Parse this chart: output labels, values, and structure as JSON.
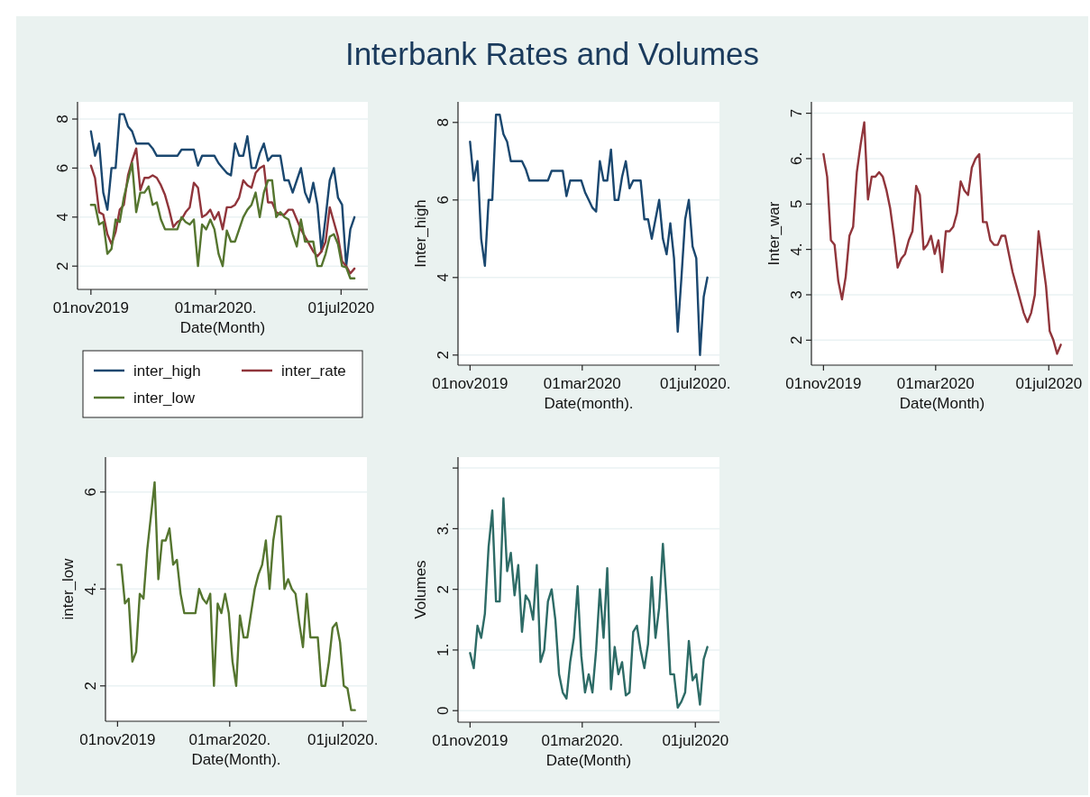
{
  "chart_data": [
    {
      "type": "other",
      "title": "Interbank Rates and Volumes"
    },
    {
      "type": "line",
      "xlabel": "Date(Month)",
      "legend": "bottom",
      "grid": "y",
      "x": [
        "2019-11-01",
        "2019-11-05",
        "2019-11-09",
        "2019-11-13",
        "2019-11-17",
        "2019-11-21",
        "2019-11-25",
        "2019-11-29",
        "2019-12-03",
        "2019-12-07",
        "2019-12-11",
        "2019-12-15",
        "2019-12-19",
        "2019-12-23",
        "2019-12-27",
        "2019-12-31",
        "2020-01-04",
        "2020-01-08",
        "2020-01-12",
        "2020-01-16",
        "2020-01-20",
        "2020-01-24",
        "2020-01-28",
        "2020-02-01",
        "2020-02-05",
        "2020-02-09",
        "2020-02-13",
        "2020-02-17",
        "2020-02-21",
        "2020-02-25",
        "2020-02-29",
        "2020-03-04",
        "2020-03-08",
        "2020-03-12",
        "2020-03-16",
        "2020-03-20",
        "2020-03-24",
        "2020-03-28",
        "2020-04-01",
        "2020-04-05",
        "2020-04-09",
        "2020-04-13",
        "2020-04-17",
        "2020-04-21",
        "2020-04-25",
        "2020-04-29",
        "2020-05-03",
        "2020-05-07",
        "2020-05-11",
        "2020-05-15",
        "2020-05-19",
        "2020-05-23",
        "2020-05-27",
        "2020-05-31",
        "2020-06-04",
        "2020-06-08",
        "2020-06-12",
        "2020-06-16",
        "2020-06-20",
        "2020-06-24",
        "2020-06-28",
        "2020-07-02",
        "2020-07-06",
        "2020-07-10",
        "2020-07-14"
      ],
      "xlim": [
        "2019-10-19",
        "2020-07-27"
      ],
      "xticks": [
        {
          "value": "2019-11-01",
          "label": "01nov2019"
        },
        {
          "value": "2020-03-01",
          "label": "01mar2020."
        },
        {
          "value": "2020-07-01",
          "label": "01jul2020"
        }
      ],
      "ylim": [
        1.05,
        8.7
      ],
      "yticks": [
        2,
        4,
        6,
        8
      ],
      "series": [
        {
          "name": "inter_high",
          "color": "#1a476f",
          "values": [
            7.5,
            6.5,
            7.0,
            5.0,
            4.3,
            6.0,
            6.0,
            8.2,
            8.2,
            7.7,
            7.5,
            7.0,
            7.0,
            7.0,
            7.0,
            6.8,
            6.5,
            6.5,
            6.5,
            6.5,
            6.5,
            6.5,
            6.75,
            6.75,
            6.75,
            6.75,
            6.1,
            6.5,
            6.5,
            6.5,
            6.5,
            6.2,
            6.0,
            5.8,
            5.7,
            7.0,
            6.5,
            6.5,
            7.3,
            6.0,
            6.0,
            6.6,
            7.0,
            6.3,
            6.5,
            6.5,
            6.5,
            5.5,
            5.5,
            5.0,
            5.5,
            6.0,
            5.0,
            4.6,
            5.4,
            4.5,
            2.6,
            4.0,
            5.5,
            6.0,
            4.8,
            4.5,
            2.0,
            3.5,
            4.0
          ]
        },
        {
          "name": "inter_rate",
          "color": "#90353b",
          "values": [
            6.1,
            5.6,
            4.2,
            4.1,
            3.3,
            2.9,
            3.4,
            4.3,
            4.5,
            5.7,
            6.3,
            6.8,
            5.1,
            5.6,
            5.6,
            5.7,
            5.6,
            5.3,
            4.9,
            4.3,
            3.6,
            3.8,
            3.9,
            4.2,
            4.4,
            5.4,
            5.2,
            4.0,
            4.1,
            4.3,
            3.9,
            4.2,
            3.5,
            4.4,
            4.4,
            4.5,
            4.8,
            5.5,
            5.3,
            5.2,
            5.8,
            6.0,
            6.1,
            4.6,
            4.6,
            4.2,
            4.1,
            4.1,
            4.3,
            4.3,
            3.9,
            3.5,
            3.2,
            2.9,
            2.6,
            2.4,
            2.6,
            3.0,
            4.4,
            3.8,
            3.2,
            2.2,
            2.0,
            1.7,
            1.9
          ]
        },
        {
          "name": "inter_low",
          "color": "#55752f",
          "values": [
            4.5,
            4.5,
            3.7,
            3.8,
            2.5,
            2.7,
            3.9,
            3.8,
            4.8,
            5.5,
            6.2,
            4.2,
            5.0,
            5.0,
            5.25,
            4.5,
            4.6,
            3.9,
            3.5,
            3.5,
            3.5,
            3.5,
            4.0,
            3.8,
            3.7,
            3.9,
            2.0,
            3.7,
            3.5,
            3.9,
            3.5,
            2.5,
            2.0,
            3.45,
            3.0,
            3.0,
            3.5,
            4.0,
            4.3,
            4.5,
            5.0,
            4.0,
            5.0,
            5.5,
            5.5,
            4.0,
            4.2,
            4.0,
            3.9,
            3.3,
            2.8,
            3.9,
            3.0,
            3.0,
            3.0,
            2.0,
            2.0,
            2.5,
            3.2,
            3.3,
            2.9,
            2.0,
            1.95,
            1.5,
            1.5
          ]
        }
      ]
    },
    {
      "type": "line",
      "xlabel": "Date(month).",
      "ylabel": "Inter_high",
      "grid": "y",
      "x": [
        "2019-11-01",
        "2019-11-05",
        "2019-11-09",
        "2019-11-13",
        "2019-11-17",
        "2019-11-21",
        "2019-11-25",
        "2019-11-29",
        "2019-12-03",
        "2019-12-07",
        "2019-12-11",
        "2019-12-15",
        "2019-12-19",
        "2019-12-23",
        "2019-12-27",
        "2019-12-31",
        "2020-01-04",
        "2020-01-08",
        "2020-01-12",
        "2020-01-16",
        "2020-01-20",
        "2020-01-24",
        "2020-01-28",
        "2020-02-01",
        "2020-02-05",
        "2020-02-09",
        "2020-02-13",
        "2020-02-17",
        "2020-02-21",
        "2020-02-25",
        "2020-02-29",
        "2020-03-04",
        "2020-03-08",
        "2020-03-12",
        "2020-03-16",
        "2020-03-20",
        "2020-03-24",
        "2020-03-28",
        "2020-04-01",
        "2020-04-05",
        "2020-04-09",
        "2020-04-13",
        "2020-04-17",
        "2020-04-21",
        "2020-04-25",
        "2020-04-29",
        "2020-05-03",
        "2020-05-07",
        "2020-05-11",
        "2020-05-15",
        "2020-05-19",
        "2020-05-23",
        "2020-05-27",
        "2020-05-31",
        "2020-06-04",
        "2020-06-08",
        "2020-06-12",
        "2020-06-16",
        "2020-06-20",
        "2020-06-24",
        "2020-06-28",
        "2020-07-02",
        "2020-07-06",
        "2020-07-10",
        "2020-07-14"
      ],
      "xlim": [
        "2019-10-19",
        "2020-07-27"
      ],
      "xticks": [
        {
          "value": "2019-11-01",
          "label": "01nov2019"
        },
        {
          "value": "2020-03-01",
          "label": "01mar2020"
        },
        {
          "value": "2020-07-01",
          "label": "01jul2020."
        }
      ],
      "ylim": [
        1.74,
        8.53
      ],
      "yticks": [
        2,
        4,
        6,
        8
      ],
      "series": [
        {
          "color": "#1a476f",
          "values": [
            7.5,
            6.5,
            7.0,
            5.0,
            4.3,
            6.0,
            6.0,
            8.2,
            8.2,
            7.7,
            7.5,
            7.0,
            7.0,
            7.0,
            7.0,
            6.8,
            6.5,
            6.5,
            6.5,
            6.5,
            6.5,
            6.5,
            6.75,
            6.75,
            6.75,
            6.75,
            6.1,
            6.5,
            6.5,
            6.5,
            6.5,
            6.2,
            6.0,
            5.8,
            5.7,
            7.0,
            6.5,
            6.5,
            7.3,
            6.0,
            6.0,
            6.6,
            7.0,
            6.3,
            6.5,
            6.5,
            6.5,
            5.5,
            5.5,
            5.0,
            5.5,
            6.0,
            5.0,
            4.6,
            5.4,
            4.5,
            2.6,
            4.0,
            5.5,
            6.0,
            4.8,
            4.5,
            2.0,
            3.5,
            4.0
          ]
        }
      ]
    },
    {
      "type": "line",
      "xlabel": "Date(Month)",
      "ylabel": "Inter_war",
      "grid": "y",
      "x": [
        "2019-11-01",
        "2019-11-05",
        "2019-11-09",
        "2019-11-13",
        "2019-11-17",
        "2019-11-21",
        "2019-11-25",
        "2019-11-29",
        "2019-12-03",
        "2019-12-07",
        "2019-12-11",
        "2019-12-15",
        "2019-12-19",
        "2019-12-23",
        "2019-12-27",
        "2019-12-31",
        "2020-01-04",
        "2020-01-08",
        "2020-01-12",
        "2020-01-16",
        "2020-01-20",
        "2020-01-24",
        "2020-01-28",
        "2020-02-01",
        "2020-02-05",
        "2020-02-09",
        "2020-02-13",
        "2020-02-17",
        "2020-02-21",
        "2020-02-25",
        "2020-02-29",
        "2020-03-04",
        "2020-03-08",
        "2020-03-12",
        "2020-03-16",
        "2020-03-20",
        "2020-03-24",
        "2020-03-28",
        "2020-04-01",
        "2020-04-05",
        "2020-04-09",
        "2020-04-13",
        "2020-04-17",
        "2020-04-21",
        "2020-04-25",
        "2020-04-29",
        "2020-05-03",
        "2020-05-07",
        "2020-05-11",
        "2020-05-15",
        "2020-05-19",
        "2020-05-23",
        "2020-05-27",
        "2020-05-31",
        "2020-06-04",
        "2020-06-08",
        "2020-06-12",
        "2020-06-16",
        "2020-06-20",
        "2020-06-24",
        "2020-06-28",
        "2020-07-02",
        "2020-07-06",
        "2020-07-10",
        "2020-07-14"
      ],
      "xlim": [
        "2019-10-19",
        "2020-07-27"
      ],
      "xticks": [
        {
          "value": "2019-11-01",
          "label": "01nov2019"
        },
        {
          "value": "2020-03-01",
          "label": "01mar2020"
        },
        {
          "value": "2020-07-01",
          "label": "01jul2020"
        }
      ],
      "ylim": [
        1.45,
        7.25
      ],
      "yticks": [
        2,
        3,
        {
          "value": 4,
          "label": "4."
        },
        5,
        {
          "value": 6,
          "label": "6."
        },
        7
      ],
      "series": [
        {
          "color": "#90353b",
          "values": [
            6.1,
            5.6,
            4.2,
            4.1,
            3.3,
            2.9,
            3.4,
            4.3,
            4.5,
            5.7,
            6.3,
            6.8,
            5.1,
            5.6,
            5.6,
            5.7,
            5.6,
            5.3,
            4.9,
            4.3,
            3.6,
            3.8,
            3.9,
            4.2,
            4.4,
            5.4,
            5.2,
            4.0,
            4.1,
            4.3,
            3.9,
            4.2,
            3.5,
            4.4,
            4.4,
            4.5,
            4.8,
            5.5,
            5.3,
            5.2,
            5.8,
            6.0,
            6.1,
            4.6,
            4.6,
            4.2,
            4.1,
            4.1,
            4.3,
            4.3,
            3.9,
            3.5,
            3.2,
            2.9,
            2.6,
            2.4,
            2.6,
            3.0,
            4.4,
            3.8,
            3.2,
            2.2,
            2.0,
            1.7,
            1.9
          ]
        }
      ]
    },
    {
      "type": "line",
      "xlabel": "Date(Month).",
      "ylabel": "inter_low",
      "grid": "y",
      "x": [
        "2019-11-01",
        "2019-11-05",
        "2019-11-09",
        "2019-11-13",
        "2019-11-17",
        "2019-11-21",
        "2019-11-25",
        "2019-11-29",
        "2019-12-03",
        "2019-12-07",
        "2019-12-11",
        "2019-12-15",
        "2019-12-19",
        "2019-12-23",
        "2019-12-27",
        "2019-12-31",
        "2020-01-04",
        "2020-01-08",
        "2020-01-12",
        "2020-01-16",
        "2020-01-20",
        "2020-01-24",
        "2020-01-28",
        "2020-02-01",
        "2020-02-05",
        "2020-02-09",
        "2020-02-13",
        "2020-02-17",
        "2020-02-21",
        "2020-02-25",
        "2020-02-29",
        "2020-03-04",
        "2020-03-08",
        "2020-03-12",
        "2020-03-16",
        "2020-03-20",
        "2020-03-24",
        "2020-03-28",
        "2020-04-01",
        "2020-04-05",
        "2020-04-09",
        "2020-04-13",
        "2020-04-17",
        "2020-04-21",
        "2020-04-25",
        "2020-04-29",
        "2020-05-03",
        "2020-05-07",
        "2020-05-11",
        "2020-05-15",
        "2020-05-19",
        "2020-05-23",
        "2020-05-27",
        "2020-05-31",
        "2020-06-04",
        "2020-06-08",
        "2020-06-12",
        "2020-06-16",
        "2020-06-20",
        "2020-06-24",
        "2020-06-28",
        "2020-07-02",
        "2020-07-06",
        "2020-07-10",
        "2020-07-14"
      ],
      "xlim": [
        "2019-10-19",
        "2020-07-27"
      ],
      "xticks": [
        {
          "value": "2019-11-01",
          "label": "01nov2019"
        },
        {
          "value": "2020-03-01",
          "label": "01mar2020."
        },
        {
          "value": "2020-07-01",
          "label": "01jul2020."
        }
      ],
      "ylim": [
        1.27,
        6.72
      ],
      "yticks": [
        2,
        {
          "value": 4,
          "label": "4."
        },
        6
      ],
      "series": [
        {
          "color": "#55752f",
          "values": [
            4.5,
            4.5,
            3.7,
            3.8,
            2.5,
            2.7,
            3.9,
            3.8,
            4.8,
            5.5,
            6.2,
            4.2,
            5.0,
            5.0,
            5.25,
            4.5,
            4.6,
            3.9,
            3.5,
            3.5,
            3.5,
            3.5,
            4.0,
            3.8,
            3.7,
            3.9,
            2.0,
            3.7,
            3.5,
            3.9,
            3.5,
            2.5,
            2.0,
            3.45,
            3.0,
            3.0,
            3.5,
            4.0,
            4.3,
            4.5,
            5.0,
            4.0,
            5.0,
            5.5,
            5.5,
            4.0,
            4.2,
            4.0,
            3.9,
            3.3,
            2.8,
            3.9,
            3.0,
            3.0,
            3.0,
            2.0,
            2.0,
            2.5,
            3.2,
            3.3,
            2.9,
            2.0,
            1.95,
            1.5,
            1.5
          ]
        }
      ]
    },
    {
      "type": "line",
      "xlabel": "Date(Month)",
      "ylabel": "Volumes",
      "grid": "y",
      "x": [
        "2019-11-01",
        "2019-11-05",
        "2019-11-09",
        "2019-11-13",
        "2019-11-17",
        "2019-11-21",
        "2019-11-25",
        "2019-11-29",
        "2019-12-03",
        "2019-12-07",
        "2019-12-11",
        "2019-12-15",
        "2019-12-19",
        "2019-12-23",
        "2019-12-27",
        "2019-12-31",
        "2020-01-04",
        "2020-01-08",
        "2020-01-12",
        "2020-01-16",
        "2020-01-20",
        "2020-01-24",
        "2020-01-28",
        "2020-02-01",
        "2020-02-05",
        "2020-02-09",
        "2020-02-13",
        "2020-02-17",
        "2020-02-21",
        "2020-02-25",
        "2020-02-29",
        "2020-03-04",
        "2020-03-08",
        "2020-03-12",
        "2020-03-16",
        "2020-03-20",
        "2020-03-24",
        "2020-03-28",
        "2020-04-01",
        "2020-04-05",
        "2020-04-09",
        "2020-04-13",
        "2020-04-17",
        "2020-04-21",
        "2020-04-25",
        "2020-04-29",
        "2020-05-03",
        "2020-05-07",
        "2020-05-11",
        "2020-05-15",
        "2020-05-19",
        "2020-05-23",
        "2020-05-27",
        "2020-05-31",
        "2020-06-04",
        "2020-06-08",
        "2020-06-12",
        "2020-06-16",
        "2020-06-20",
        "2020-06-24",
        "2020-06-28",
        "2020-07-02",
        "2020-07-06",
        "2020-07-10",
        "2020-07-14"
      ],
      "xlim": [
        "2019-10-19",
        "2020-07-27"
      ],
      "xticks": [
        {
          "value": "2019-11-01",
          "label": "01nov2019"
        },
        {
          "value": "2020-03-01",
          "label": "01mar2020."
        },
        {
          "value": "2020-07-01",
          "label": "01jul2020"
        }
      ],
      "ylim": [
        -0.19,
        4.18
      ],
      "yticks": [
        0,
        {
          "value": 1,
          "label": "1."
        },
        2,
        {
          "value": 3,
          "label": "3."
        },
        {
          "value": 4,
          "label": null
        }
      ],
      "series": [
        {
          "color": "#2d6b66",
          "values": [
            0.95,
            0.7,
            1.4,
            1.2,
            1.6,
            2.7,
            3.3,
            1.8,
            1.8,
            3.5,
            2.3,
            2.6,
            1.9,
            2.4,
            1.3,
            1.9,
            1.8,
            1.5,
            2.4,
            0.8,
            1.0,
            1.8,
            2.0,
            1.5,
            0.6,
            0.3,
            0.2,
            0.8,
            1.2,
            2.05,
            0.9,
            0.3,
            0.6,
            0.3,
            1.0,
            2.0,
            1.2,
            2.35,
            0.35,
            1.05,
            0.6,
            0.8,
            0.25,
            0.3,
            1.3,
            1.4,
            1.0,
            0.7,
            1.1,
            2.2,
            1.2,
            1.7,
            2.75,
            1.8,
            0.6,
            0.6,
            0.05,
            0.15,
            0.3,
            1.15,
            0.5,
            0.6,
            0.1,
            0.85,
            1.05
          ]
        }
      ]
    }
  ]
}
